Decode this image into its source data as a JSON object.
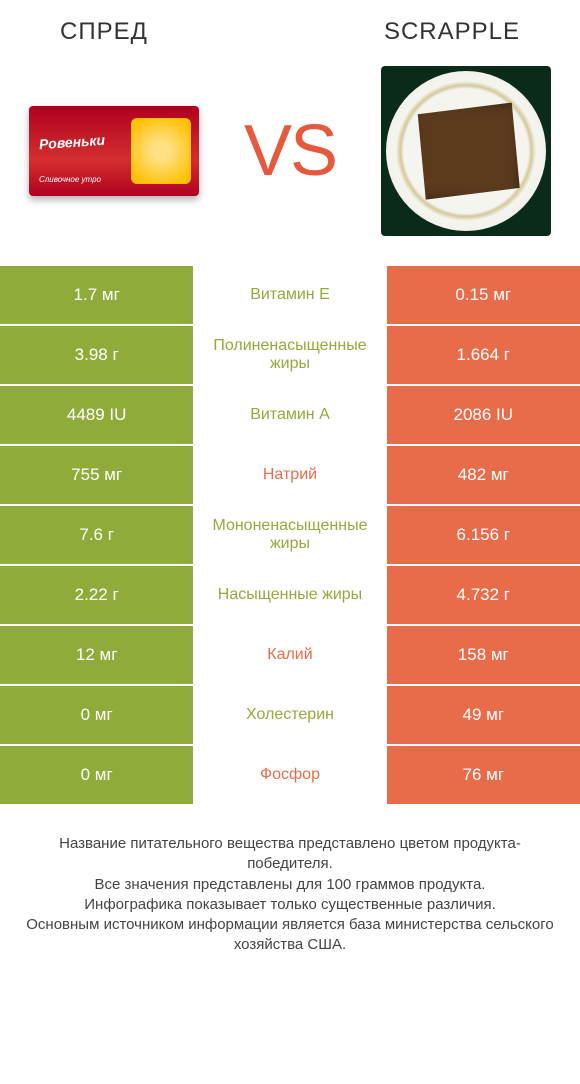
{
  "colors": {
    "left_bg": "#8fac3a",
    "right_bg": "#e86b4a",
    "left_text": "#8fac3a",
    "right_text": "#e86b4a",
    "vs": "#e55a3c"
  },
  "header": {
    "left": "СПРЕД",
    "right": "SCRAPPLE",
    "vs": "VS"
  },
  "product_left": {
    "brand": "Ровеньки",
    "sub": "Сливочное утро"
  },
  "rows": [
    {
      "left": "1.7 мг",
      "label": "Витамин E",
      "right": "0.15 мг",
      "winner": "left"
    },
    {
      "left": "3.98 г",
      "label": "Полиненасыщенные жиры",
      "right": "1.664 г",
      "winner": "left"
    },
    {
      "left": "4489 IU",
      "label": "Витамин A",
      "right": "2086 IU",
      "winner": "left"
    },
    {
      "left": "755 мг",
      "label": "Натрий",
      "right": "482 мг",
      "winner": "right"
    },
    {
      "left": "7.6 г",
      "label": "Мононенасыщенные жиры",
      "right": "6.156 г",
      "winner": "left"
    },
    {
      "left": "2.22 г",
      "label": "Насыщенные жиры",
      "right": "4.732 г",
      "winner": "left"
    },
    {
      "left": "12 мг",
      "label": "Калий",
      "right": "158 мг",
      "winner": "right"
    },
    {
      "left": "0 мг",
      "label": "Холестерин",
      "right": "49 мг",
      "winner": "left"
    },
    {
      "left": "0 мг",
      "label": "Фосфор",
      "right": "76 мг",
      "winner": "right"
    }
  ],
  "footer": {
    "line1": "Название питательного вещества представлено цветом продукта-победителя.",
    "line2": "Все значения представлены для 100 граммов продукта.",
    "line3": "Инфографика показывает только существенные различия.",
    "line4": "Основным источником информации является база министерства сельского хозяйства США."
  }
}
